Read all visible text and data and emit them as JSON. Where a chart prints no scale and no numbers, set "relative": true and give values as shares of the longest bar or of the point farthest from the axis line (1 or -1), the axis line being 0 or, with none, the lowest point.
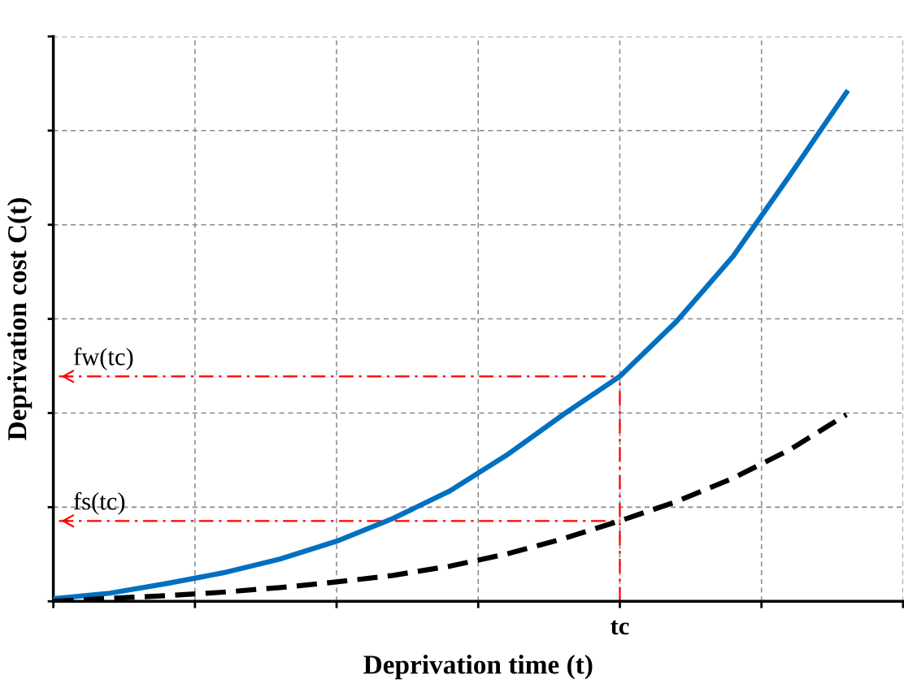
{
  "chart_data": {
    "type": "line",
    "relative": true,
    "xlabel": "Deprivation time (t)",
    "ylabel": "Deprivation cost C(t)",
    "categories": [
      null,
      null,
      null,
      null,
      null,
      null,
      null,
      null,
      null,
      null,
      null,
      null,
      null,
      null,
      null
    ],
    "series": [
      {
        "color": "#0070c0",
        "line_style": "solid",
        "values": [
          0.005,
          0.016,
          0.035,
          0.056,
          0.083,
          0.118,
          0.163,
          0.217,
          0.287,
          0.367,
          0.442,
          0.55,
          0.678,
          0.837,
          1.0
        ]
      },
      {
        "color": "#000000",
        "line_style": "dashed",
        "values": [
          0.0,
          0.006,
          0.011,
          0.018,
          0.027,
          0.038,
          0.051,
          0.069,
          0.093,
          0.123,
          0.158,
          0.196,
          0.242,
          0.298,
          0.367
        ]
      }
    ],
    "annotations": [
      "tc"
    ],
    "ref_lines": [
      {
        "axis": "y",
        "value": 0.442,
        "label": "fw(tc)",
        "color": "#ff0000",
        "line_style": "dashdot"
      },
      {
        "axis": "y",
        "value": 0.158,
        "label": "fs(tc)",
        "color": "#ff0000",
        "line_style": "dashdot"
      }
    ],
    "grid": true,
    "legend": false,
    "marker": "none"
  }
}
